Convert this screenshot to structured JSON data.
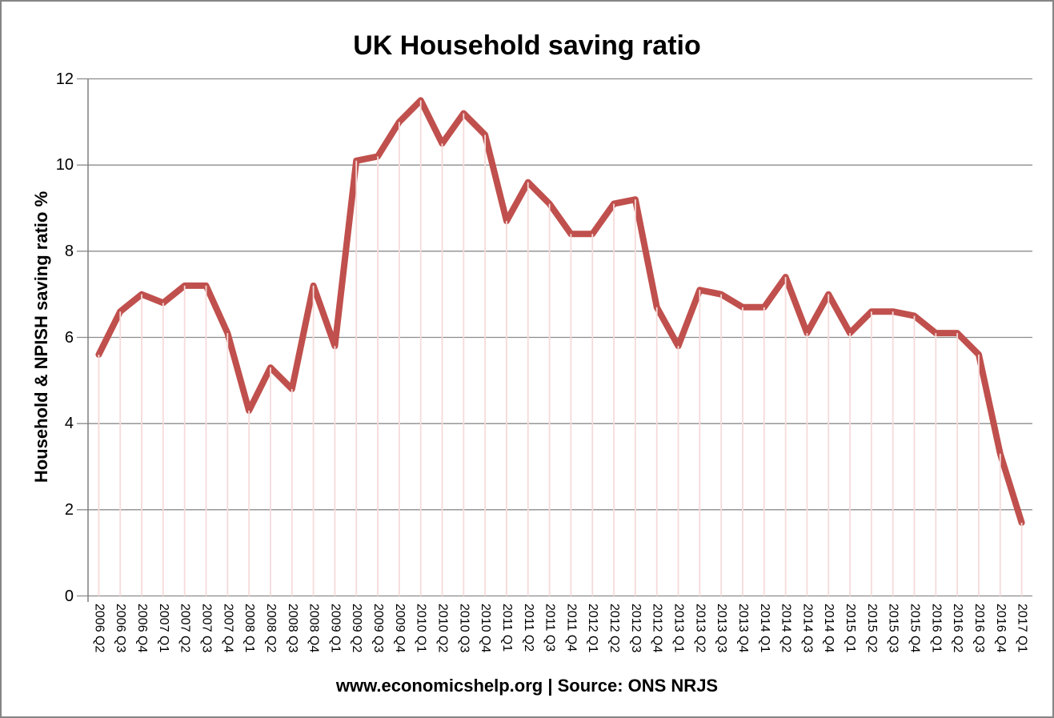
{
  "chart_data": {
    "type": "line",
    "title": "UK Household saving ratio",
    "xlabel": "",
    "ylabel": "Household & NPISH saving ratio %",
    "ylim": [
      0,
      12
    ],
    "y_ticks": [
      0,
      2,
      4,
      6,
      8,
      10,
      12
    ],
    "grid": "horizontal",
    "legend": "none",
    "categories": [
      "2006 Q2",
      "2006 Q3",
      "2006 Q4",
      "2007 Q1",
      "2007 Q2",
      "2007 Q3",
      "2007 Q4",
      "2008 Q1",
      "2008 Q2",
      "2008 Q3",
      "2008 Q4",
      "2009 Q1",
      "2009 Q2",
      "2009 Q3",
      "2009 Q4",
      "2010 Q1",
      "2010 Q2",
      "2010 Q3",
      "2010 Q4",
      "2011 Q1",
      "2011 Q2",
      "2011 Q3",
      "2011 Q4",
      "2012 Q1",
      "2012 Q2",
      "2012 Q3",
      "2012 Q4",
      "2013 Q1",
      "2013 Q2",
      "2013 Q3",
      "2013 Q4",
      "2014 Q1",
      "2014 Q2",
      "2014 Q3",
      "2014 Q4",
      "2015 Q1",
      "2015 Q2",
      "2015 Q3",
      "2015 Q4",
      "2016 Q1",
      "2016 Q2",
      "2016 Q3",
      "2016 Q4",
      "2017 Q1"
    ],
    "values": [
      5.6,
      6.6,
      7.0,
      6.8,
      7.2,
      7.2,
      6.1,
      4.3,
      5.3,
      4.8,
      7.2,
      5.8,
      10.1,
      10.2,
      11.0,
      11.5,
      10.5,
      11.2,
      10.7,
      8.7,
      9.6,
      9.1,
      8.4,
      8.4,
      9.1,
      9.2,
      6.7,
      5.8,
      7.1,
      7.0,
      6.7,
      6.7,
      7.4,
      6.1,
      7.0,
      6.1,
      6.6,
      6.6,
      6.5,
      6.1,
      6.1,
      5.6,
      3.3,
      1.7
    ]
  },
  "footer": {
    "text": "www.economicshelp.org | Source: ONS NRJS"
  },
  "colors": {
    "line": "#C0504D",
    "dropline": "#F5DBDA",
    "gridline": "#8C8C8C",
    "axis": "#7F7F7F",
    "text": "#000000",
    "frame_border": "#858585",
    "background": "#FFFFFF"
  }
}
